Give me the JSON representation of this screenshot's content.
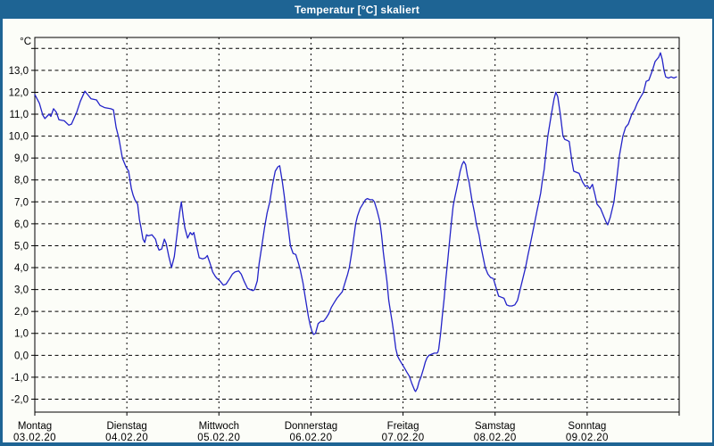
{
  "window": {
    "title": "Temperatur [°C] skaliert",
    "titlebar_color": "#1e6494",
    "frame_color": "#1e6494",
    "content_background": "#fcfdf8"
  },
  "chart_data": {
    "type": "line",
    "title": "Temperatur [°C] skaliert",
    "unit_label": "°C",
    "line_color": "#2323c8",
    "grid_color": "#000000",
    "text_color": "#000000",
    "grid_style": "dashed",
    "y_grid_min": -2,
    "y_grid_max": 14,
    "y_axis_top": 14.5,
    "y_axis_bottom": -2.6,
    "y_tick_labels": [
      {
        "value": 13,
        "label": "13,0"
      },
      {
        "value": 12,
        "label": "12,0"
      },
      {
        "value": 11,
        "label": "11,0"
      },
      {
        "value": 10,
        "label": "10,0"
      },
      {
        "value": 9,
        "label": "9,0"
      },
      {
        "value": 8,
        "label": "8,0"
      },
      {
        "value": 7,
        "label": "7,0"
      },
      {
        "value": 6,
        "label": "6,0"
      },
      {
        "value": 5,
        "label": "5,0"
      },
      {
        "value": 4,
        "label": "4,0"
      },
      {
        "value": 3,
        "label": "3,0"
      },
      {
        "value": 2,
        "label": "2,0"
      },
      {
        "value": 1,
        "label": "1,0"
      },
      {
        "value": 0,
        "label": "0,0"
      },
      {
        "value": -1,
        "label": "-1,0"
      },
      {
        "value": -2,
        "label": "-2,0"
      }
    ],
    "x_days": [
      {
        "name": "Montag",
        "date": "03.02.20"
      },
      {
        "name": "Dienstag",
        "date": "04.02.20"
      },
      {
        "name": "Mittwoch",
        "date": "05.02.20"
      },
      {
        "name": "Donnerstag",
        "date": "06.02.20"
      },
      {
        "name": "Freitag",
        "date": "07.02.20"
      },
      {
        "name": "Samstag",
        "date": "08.02.20"
      },
      {
        "name": "Sonntag",
        "date": "09.02.20"
      }
    ],
    "x_total_days": 7,
    "series": [
      {
        "name": "Temperatur",
        "points": [
          [
            0.0,
            11.9
          ],
          [
            0.049,
            11.5
          ],
          [
            0.087,
            10.95
          ],
          [
            0.11,
            10.8
          ],
          [
            0.155,
            11.0
          ],
          [
            0.175,
            10.9
          ],
          [
            0.204,
            11.25
          ],
          [
            0.233,
            11.1
          ],
          [
            0.262,
            10.75
          ],
          [
            0.32,
            10.7
          ],
          [
            0.369,
            10.5
          ],
          [
            0.398,
            10.55
          ],
          [
            0.456,
            11.1
          ],
          [
            0.495,
            11.6
          ],
          [
            0.544,
            12.05
          ],
          [
            0.583,
            11.85
          ],
          [
            0.612,
            11.7
          ],
          [
            0.67,
            11.65
          ],
          [
            0.709,
            11.4
          ],
          [
            0.757,
            11.3
          ],
          [
            0.825,
            11.25
          ],
          [
            0.854,
            11.2
          ],
          [
            0.883,
            10.4
          ],
          [
            0.913,
            9.9
          ],
          [
            0.951,
            9.0
          ],
          [
            0.99,
            8.6
          ],
          [
            1.019,
            8.4
          ],
          [
            1.049,
            7.6
          ],
          [
            1.068,
            7.3
          ],
          [
            1.087,
            7.1
          ],
          [
            1.117,
            6.9
          ],
          [
            1.136,
            6.2
          ],
          [
            1.155,
            5.8
          ],
          [
            1.175,
            5.3
          ],
          [
            1.194,
            5.15
          ],
          [
            1.214,
            5.5
          ],
          [
            1.233,
            5.45
          ],
          [
            1.272,
            5.5
          ],
          [
            1.311,
            5.3
          ],
          [
            1.33,
            5.0
          ],
          [
            1.35,
            4.8
          ],
          [
            1.379,
            4.85
          ],
          [
            1.408,
            5.3
          ],
          [
            1.427,
            5.1
          ],
          [
            1.456,
            4.5
          ],
          [
            1.485,
            4.0
          ],
          [
            1.515,
            4.5
          ],
          [
            1.544,
            5.5
          ],
          [
            1.573,
            6.5
          ],
          [
            1.592,
            7.0
          ],
          [
            1.612,
            6.3
          ],
          [
            1.631,
            5.8
          ],
          [
            1.66,
            5.35
          ],
          [
            1.689,
            5.6
          ],
          [
            1.709,
            5.5
          ],
          [
            1.728,
            5.6
          ],
          [
            1.757,
            5.0
          ],
          [
            1.786,
            4.45
          ],
          [
            1.825,
            4.4
          ],
          [
            1.854,
            4.45
          ],
          [
            1.874,
            4.55
          ],
          [
            1.903,
            4.2
          ],
          [
            1.932,
            3.8
          ],
          [
            1.961,
            3.6
          ],
          [
            1.981,
            3.5
          ],
          [
            2.01,
            3.4
          ],
          [
            2.049,
            3.2
          ],
          [
            2.078,
            3.25
          ],
          [
            2.117,
            3.5
          ],
          [
            2.146,
            3.7
          ],
          [
            2.175,
            3.8
          ],
          [
            2.214,
            3.85
          ],
          [
            2.243,
            3.7
          ],
          [
            2.272,
            3.4
          ],
          [
            2.311,
            3.05
          ],
          [
            2.34,
            3.0
          ],
          [
            2.369,
            2.95
          ],
          [
            2.388,
            3.0
          ],
          [
            2.417,
            3.4
          ],
          [
            2.437,
            4.2
          ],
          [
            2.466,
            5.0
          ],
          [
            2.495,
            5.8
          ],
          [
            2.524,
            6.5
          ],
          [
            2.553,
            7.0
          ],
          [
            2.583,
            7.8
          ],
          [
            2.612,
            8.4
          ],
          [
            2.641,
            8.6
          ],
          [
            2.66,
            8.65
          ],
          [
            2.689,
            7.9
          ],
          [
            2.709,
            7.3
          ],
          [
            2.728,
            6.6
          ],
          [
            2.748,
            6.0
          ],
          [
            2.777,
            5.0
          ],
          [
            2.806,
            4.65
          ],
          [
            2.835,
            4.6
          ],
          [
            2.864,
            4.2
          ],
          [
            2.883,
            3.9
          ],
          [
            2.913,
            3.3
          ],
          [
            2.932,
            2.8
          ],
          [
            2.951,
            2.3
          ],
          [
            2.971,
            1.8
          ],
          [
            2.99,
            1.4
          ],
          [
            3.01,
            1.1
          ],
          [
            3.029,
            0.95
          ],
          [
            3.049,
            1.0
          ],
          [
            3.078,
            1.45
          ],
          [
            3.107,
            1.55
          ],
          [
            3.136,
            1.55
          ],
          [
            3.165,
            1.7
          ],
          [
            3.194,
            1.9
          ],
          [
            3.223,
            2.2
          ],
          [
            3.252,
            2.4
          ],
          [
            3.282,
            2.6
          ],
          [
            3.311,
            2.75
          ],
          [
            3.34,
            2.9
          ],
          [
            3.369,
            3.3
          ],
          [
            3.398,
            3.7
          ],
          [
            3.417,
            4.0
          ],
          [
            3.447,
            4.8
          ],
          [
            3.466,
            5.4
          ],
          [
            3.485,
            6.0
          ],
          [
            3.505,
            6.35
          ],
          [
            3.534,
            6.7
          ],
          [
            3.563,
            6.9
          ],
          [
            3.592,
            7.1
          ],
          [
            3.612,
            7.15
          ],
          [
            3.641,
            7.1
          ],
          [
            3.67,
            7.1
          ],
          [
            3.689,
            7.0
          ],
          [
            3.718,
            6.6
          ],
          [
            3.748,
            6.1
          ],
          [
            3.767,
            5.5
          ],
          [
            3.786,
            4.7
          ],
          [
            3.806,
            4.0
          ],
          [
            3.825,
            3.4
          ],
          [
            3.845,
            2.5
          ],
          [
            3.864,
            2.0
          ],
          [
            3.883,
            1.5
          ],
          [
            3.903,
            0.9
          ],
          [
            3.922,
            0.3
          ],
          [
            3.942,
            -0.05
          ],
          [
            3.961,
            -0.2
          ],
          [
            3.99,
            -0.4
          ],
          [
            4.019,
            -0.6
          ],
          [
            4.039,
            -0.75
          ],
          [
            4.068,
            -0.95
          ],
          [
            4.097,
            -1.3
          ],
          [
            4.126,
            -1.6
          ],
          [
            4.136,
            -1.65
          ],
          [
            4.155,
            -1.5
          ],
          [
            4.175,
            -1.2
          ],
          [
            4.194,
            -1.0
          ],
          [
            4.223,
            -0.6
          ],
          [
            4.243,
            -0.3
          ],
          [
            4.262,
            -0.1
          ],
          [
            4.282,
            0.0
          ],
          [
            4.311,
            0.05
          ],
          [
            4.34,
            0.1
          ],
          [
            4.369,
            0.1
          ],
          [
            4.379,
            0.15
          ],
          [
            4.388,
            0.3
          ],
          [
            4.408,
            1.0
          ],
          [
            4.427,
            1.8
          ],
          [
            4.447,
            2.6
          ],
          [
            4.466,
            3.5
          ],
          [
            4.485,
            4.3
          ],
          [
            4.505,
            5.2
          ],
          [
            4.524,
            6.0
          ],
          [
            4.544,
            6.8
          ],
          [
            4.563,
            7.2
          ],
          [
            4.583,
            7.6
          ],
          [
            4.602,
            8.0
          ],
          [
            4.621,
            8.4
          ],
          [
            4.641,
            8.7
          ],
          [
            4.66,
            8.85
          ],
          [
            4.68,
            8.7
          ],
          [
            4.699,
            8.2
          ],
          [
            4.718,
            7.9
          ],
          [
            4.748,
            7.1
          ],
          [
            4.777,
            6.5
          ],
          [
            4.796,
            6.0
          ],
          [
            4.825,
            5.5
          ],
          [
            4.845,
            5.0
          ],
          [
            4.874,
            4.4
          ],
          [
            4.893,
            4.0
          ],
          [
            4.922,
            3.7
          ],
          [
            4.951,
            3.55
          ],
          [
            4.981,
            3.5
          ],
          [
            5.01,
            3.1
          ],
          [
            5.039,
            2.7
          ],
          [
            5.068,
            2.65
          ],
          [
            5.097,
            2.6
          ],
          [
            5.126,
            2.3
          ],
          [
            5.155,
            2.25
          ],
          [
            5.184,
            2.25
          ],
          [
            5.214,
            2.3
          ],
          [
            5.243,
            2.5
          ],
          [
            5.272,
            3.0
          ],
          [
            5.301,
            3.5
          ],
          [
            5.33,
            4.0
          ],
          [
            5.359,
            4.6
          ],
          [
            5.379,
            5.0
          ],
          [
            5.408,
            5.6
          ],
          [
            5.427,
            6.0
          ],
          [
            5.456,
            6.6
          ],
          [
            5.476,
            7.0
          ],
          [
            5.495,
            7.4
          ],
          [
            5.515,
            8.0
          ],
          [
            5.534,
            8.5
          ],
          [
            5.544,
            8.9
          ],
          [
            5.573,
            10.0
          ],
          [
            5.612,
            11.0
          ],
          [
            5.641,
            11.7
          ],
          [
            5.66,
            12.0
          ],
          [
            5.68,
            11.8
          ],
          [
            5.709,
            11.0
          ],
          [
            5.738,
            10.0
          ],
          [
            5.757,
            9.85
          ],
          [
            5.786,
            9.8
          ],
          [
            5.806,
            9.75
          ],
          [
            5.835,
            8.85
          ],
          [
            5.854,
            8.4
          ],
          [
            5.883,
            8.35
          ],
          [
            5.913,
            8.3
          ],
          [
            5.951,
            7.9
          ],
          [
            5.981,
            7.7
          ],
          [
            6.0,
            7.75
          ],
          [
            6.029,
            7.6
          ],
          [
            6.058,
            7.8
          ],
          [
            6.087,
            7.3
          ],
          [
            6.107,
            6.9
          ],
          [
            6.146,
            6.7
          ],
          [
            6.175,
            6.4
          ],
          [
            6.204,
            6.1
          ],
          [
            6.223,
            5.95
          ],
          [
            6.252,
            6.3
          ],
          [
            6.291,
            7.0
          ],
          [
            6.32,
            8.0
          ],
          [
            6.35,
            9.1
          ],
          [
            6.388,
            10.0
          ],
          [
            6.417,
            10.4
          ],
          [
            6.447,
            10.55
          ],
          [
            6.485,
            11.0
          ],
          [
            6.515,
            11.2
          ],
          [
            6.544,
            11.5
          ],
          [
            6.583,
            11.8
          ],
          [
            6.612,
            12.0
          ],
          [
            6.641,
            12.5
          ],
          [
            6.67,
            12.55
          ],
          [
            6.709,
            13.0
          ],
          [
            6.738,
            13.4
          ],
          [
            6.777,
            13.6
          ],
          [
            6.796,
            13.8
          ],
          [
            6.816,
            13.5
          ],
          [
            6.835,
            13.0
          ],
          [
            6.854,
            12.7
          ],
          [
            6.883,
            12.65
          ],
          [
            6.913,
            12.7
          ],
          [
            6.942,
            12.65
          ],
          [
            6.971,
            12.7
          ]
        ]
      }
    ]
  }
}
